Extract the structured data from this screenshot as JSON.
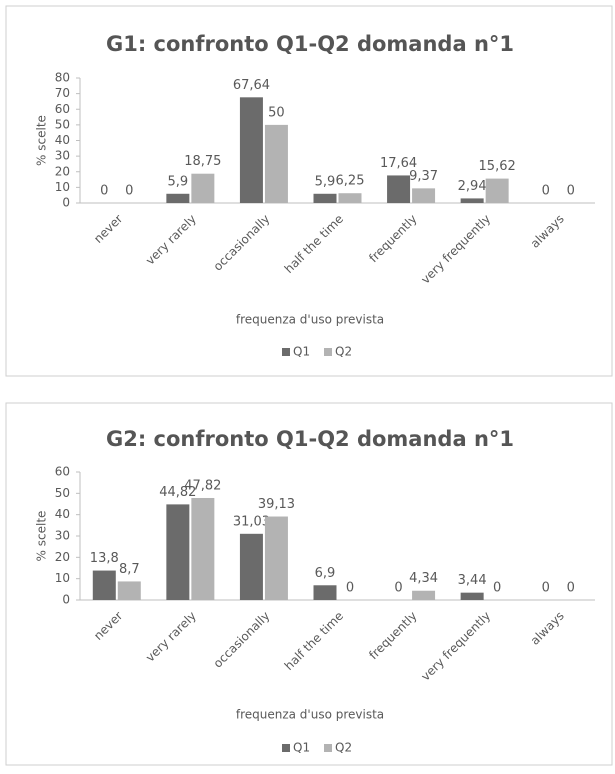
{
  "chart_data": [
    {
      "type": "bar",
      "title": "G1: confronto Q1-Q2 domanda n°1",
      "x_label": "frequenza d'uso prevista",
      "y_label": "% scelte",
      "categories": [
        "never",
        "very rarely",
        "occasionally",
        "half the time",
        "frequently",
        "very frequently",
        "always"
      ],
      "series": [
        {
          "name": "Q1",
          "color": "#6b6b6b",
          "values": [
            0,
            5.9,
            67.64,
            5.9,
            17.64,
            2.94,
            0
          ],
          "value_labels": [
            "0",
            "5,9",
            "67,64",
            "5,9",
            "17,64",
            "2,94",
            "0"
          ]
        },
        {
          "name": "Q2",
          "color": "#b3b3b3",
          "values": [
            0,
            18.75,
            50,
            6.25,
            9.37,
            15.62,
            0
          ],
          "value_labels": [
            "0",
            "18,75",
            "50",
            "6,25",
            "9,37",
            "15,62",
            "0"
          ]
        }
      ],
      "ylim": [
        0,
        80
      ],
      "yticks": [
        0,
        10,
        20,
        30,
        40,
        50,
        60,
        70,
        80
      ],
      "legend": "bottom"
    },
    {
      "type": "bar",
      "title": "G2: confronto Q1-Q2 domanda n°1",
      "x_label": "frequenza d'uso prevista",
      "y_label": "% scelte",
      "categories": [
        "never",
        "very rarely",
        "occasionally",
        "half the time",
        "frequently",
        "very frequently",
        "always"
      ],
      "series": [
        {
          "name": "Q1",
          "color": "#6b6b6b",
          "values": [
            13.8,
            44.82,
            31.03,
            6.9,
            0,
            3.44,
            0
          ],
          "value_labels": [
            "13,8",
            "44,82",
            "31,03",
            "6,9",
            "0",
            "3,44",
            "0"
          ]
        },
        {
          "name": "Q2",
          "color": "#b3b3b3",
          "values": [
            8.7,
            47.82,
            39.13,
            0,
            4.34,
            0,
            0
          ],
          "value_labels": [
            "8,7",
            "47,82",
            "39,13",
            "0",
            "4,34",
            "0",
            "0"
          ]
        }
      ],
      "ylim": [
        0,
        60
      ],
      "yticks": [
        0,
        10,
        20,
        30,
        40,
        50,
        60
      ],
      "legend": "bottom"
    }
  ]
}
